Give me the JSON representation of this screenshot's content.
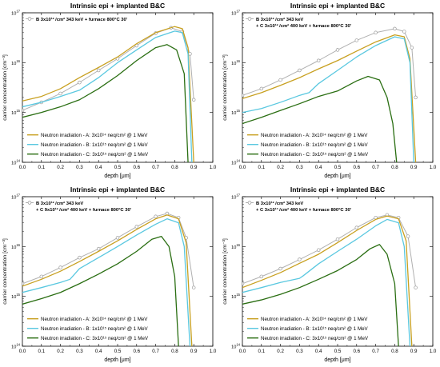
{
  "chart_data": [
    {
      "type": "line",
      "title": "Intrinsic epi + implanted B&C",
      "xlabel": "depth [μm]",
      "ylabel": "carrier concentration [cm⁻³]",
      "xlim": [
        0.0,
        1.0
      ],
      "ylim_log10": [
        14,
        17
      ],
      "y_scale": "log",
      "x_ticks": [
        "0.0",
        "0.1",
        "0.2",
        "0.3",
        "0.4",
        "0.5",
        "0.6",
        "0.7",
        "0.8",
        "0.9",
        "1.0"
      ],
      "y_ticks": [
        {
          "mant": "10",
          "exp": "17"
        },
        {
          "mant": "10",
          "exp": "16"
        },
        {
          "mant": "10",
          "exp": "15"
        },
        {
          "mant": "10",
          "exp": "14"
        }
      ],
      "implant": {
        "line1": "B 3x10¹² /cm² 343 keV + furnace 800°C 30'",
        "line2": ""
      },
      "series": [
        {
          "name": "B 3x10¹² /cm² 343 keV",
          "color": "#b0b0b0",
          "marker": "circle",
          "x": [
            0,
            0.1,
            0.2,
            0.3,
            0.4,
            0.5,
            0.6,
            0.7,
            0.78,
            0.84,
            0.88,
            0.9
          ],
          "y": [
            1100000000000000.0,
            1600000000000000.0,
            2400000000000000.0,
            4000000000000000.0,
            7000000000000000.0,
            1.2e+16,
            2.2e+16,
            3.9e+16,
            5e+16,
            4.2e+16,
            1.5e+16,
            1800000000000000.0
          ]
        },
        {
          "name": "Neutron irradiation - A: 3x10¹⁴ neq/cm² @ 1 MeV",
          "color": "#c8a020",
          "x": [
            0,
            0.1,
            0.2,
            0.3,
            0.4,
            0.5,
            0.6,
            0.7,
            0.8,
            0.84,
            0.87,
            0.9
          ],
          "y": [
            1700000000000000.0,
            2100000000000000.0,
            3000000000000000.0,
            5000000000000000.0,
            8000000000000000.0,
            1.3e+16,
            2.4e+16,
            4e+16,
            5.3e+16,
            4.8e+16,
            2e+16,
            100000000000000.0
          ]
        },
        {
          "name": "Neutron irradiation - B: 1x10¹⁵ neq/cm² @ 1 MeV",
          "color": "#5ac8e0",
          "x": [
            0,
            0.1,
            0.2,
            0.3,
            0.4,
            0.5,
            0.6,
            0.7,
            0.8,
            0.84,
            0.87,
            0.89
          ],
          "y": [
            1300000000000000.0,
            1600000000000000.0,
            2100000000000000.0,
            2800000000000000.0,
            5000000000000000.0,
            1e+16,
            1.8e+16,
            3.2e+16,
            4.3e+16,
            4e+16,
            1.5e+16,
            100000000000000.0
          ]
        },
        {
          "name": "Neutron irradiation - C: 3x10¹⁵ neq/cm² @ 1 MeV",
          "color": "#2a6e12",
          "x": [
            0,
            0.1,
            0.2,
            0.3,
            0.4,
            0.5,
            0.6,
            0.7,
            0.76,
            0.81,
            0.85,
            0.87
          ],
          "y": [
            800000000000000.0,
            1000000000000000.0,
            1300000000000000.0,
            1800000000000000.0,
            3000000000000000.0,
            5500000000000000.0,
            1.1e+16,
            2e+16,
            2.3e+16,
            1.8e+16,
            6000000000000000.0,
            100000000000000.0
          ]
        }
      ],
      "legend": "bottom-left"
    },
    {
      "type": "line",
      "title": "Intrinsic epi + implanted B&C",
      "xlabel": "depth [μm]",
      "ylabel": "carrier concentration [cm⁻³]",
      "xlim": [
        0.0,
        1.0
      ],
      "ylim_log10": [
        14,
        17
      ],
      "y_scale": "log",
      "x_ticks": [
        "0.0",
        "0.1",
        "0.2",
        "0.3",
        "0.4",
        "0.5",
        "0.6",
        "0.7",
        "0.8",
        "0.9",
        "1.0"
      ],
      "y_ticks": [
        {
          "mant": "10",
          "exp": "17"
        },
        {
          "mant": "10",
          "exp": "16"
        },
        {
          "mant": "10",
          "exp": "15"
        },
        {
          "mant": "10",
          "exp": "14"
        }
      ],
      "implant": {
        "line1": "B 3x10¹² /cm² 343 keV",
        "line2": "+ C 3x10¹² /cm² 400 keV + furnace 800°C 30'"
      },
      "series": [
        {
          "name": "B 3x10¹² /cm² 343 keV",
          "color": "#b0b0b0",
          "marker": "circle",
          "x": [
            0,
            0.1,
            0.2,
            0.3,
            0.4,
            0.5,
            0.6,
            0.7,
            0.8,
            0.85,
            0.89,
            0.91
          ],
          "y": [
            2200000000000000.0,
            3000000000000000.0,
            4500000000000000.0,
            7000000000000000.0,
            1.1e+16,
            1.8e+16,
            2.8e+16,
            4e+16,
            4.8e+16,
            4.2e+16,
            2e+16,
            2000000000000000.0
          ]
        },
        {
          "name": "Neutron irradiation - A: 3x10¹⁴ neq/cm² @ 1 MeV",
          "color": "#c8a020",
          "x": [
            0,
            0.1,
            0.2,
            0.3,
            0.4,
            0.5,
            0.6,
            0.7,
            0.8,
            0.85,
            0.88,
            0.91
          ],
          "y": [
            1900000000000000.0,
            2500000000000000.0,
            3500000000000000.0,
            5000000000000000.0,
            7500000000000000.0,
            1.1e+16,
            1.7e+16,
            2.6e+16,
            3.6e+16,
            3.3e+16,
            1.2e+16,
            100000000000000.0
          ]
        },
        {
          "name": "Neutron irradiation - B: 1x10¹⁵ neq/cm² @ 1 MeV",
          "color": "#5ac8e0",
          "x": [
            0,
            0.1,
            0.2,
            0.3,
            0.35,
            0.4,
            0.5,
            0.6,
            0.7,
            0.8,
            0.85,
            0.88,
            0.9
          ],
          "y": [
            1000000000000000.0,
            1200000000000000.0,
            1600000000000000.0,
            2200000000000000.0,
            2500000000000000.0,
            3800000000000000.0,
            7000000000000000.0,
            1.3e+16,
            2.2e+16,
            3.3e+16,
            3e+16,
            1e+16,
            100000000000000.0
          ]
        },
        {
          "name": "Neutron irradiation - C: 3x10¹⁵ neq/cm² @ 1 MeV",
          "color": "#2a6e12",
          "x": [
            0,
            0.1,
            0.2,
            0.3,
            0.4,
            0.5,
            0.6,
            0.66,
            0.72,
            0.76,
            0.79,
            0.81
          ],
          "y": [
            600000000000000.0,
            800000000000000.0,
            1100000000000000.0,
            1500000000000000.0,
            2100000000000000.0,
            2700000000000000.0,
            4300000000000000.0,
            5300000000000000.0,
            4500000000000000.0,
            2000000000000000.0,
            600000000000000.0,
            100000000000000.0
          ]
        }
      ],
      "legend": "bottom-left"
    },
    {
      "type": "line",
      "title": "Intrinsic epi + implanted B&C",
      "xlabel": "depth [μm]",
      "ylabel": "carrier concentration [cm⁻³]",
      "xlim": [
        0.0,
        1.0
      ],
      "ylim_log10": [
        14,
        17
      ],
      "y_scale": "log",
      "x_ticks": [
        "0.0",
        "0.1",
        "0.2",
        "0.3",
        "0.4",
        "0.5",
        "0.6",
        "0.7",
        "0.8",
        "0.9",
        "1.0"
      ],
      "y_ticks": [
        {
          "mant": "10",
          "exp": "17"
        },
        {
          "mant": "10",
          "exp": "16"
        },
        {
          "mant": "10",
          "exp": "15"
        },
        {
          "mant": "10",
          "exp": "14"
        }
      ],
      "implant": {
        "line1": "B 3x10¹² /cm² 343 keV",
        "line2": "+ C 9x10¹² /cm² 400 keV + furnace 800°C 30'"
      },
      "series": [
        {
          "name": "B 3x10¹² /cm² 343 keV",
          "color": "#b0b0b0",
          "marker": "circle",
          "x": [
            0,
            0.1,
            0.2,
            0.3,
            0.4,
            0.5,
            0.6,
            0.7,
            0.76,
            0.82,
            0.86,
            0.9
          ],
          "y": [
            1800000000000000.0,
            2500000000000000.0,
            3800000000000000.0,
            6000000000000000.0,
            9000000000000000.0,
            1.5e+16,
            2.5e+16,
            4e+16,
            4.6e+16,
            3.8e+16,
            1.5e+16,
            1500000000000000.0
          ]
        },
        {
          "name": "Neutron irradiation - A: 3x10¹⁴ neq/cm² @ 1 MeV",
          "color": "#c8a020",
          "x": [
            0,
            0.1,
            0.2,
            0.3,
            0.4,
            0.5,
            0.6,
            0.7,
            0.76,
            0.82,
            0.86,
            0.89
          ],
          "y": [
            1600000000000000.0,
            2200000000000000.0,
            3200000000000000.0,
            5000000000000000.0,
            8000000000000000.0,
            1.3e+16,
            2.2e+16,
            3.6e+16,
            4.3e+16,
            3.6e+16,
            1.2e+16,
            100000000000000.0
          ]
        },
        {
          "name": "Neutron irradiation - B: 1x10¹⁵ neq/cm² @ 1 MeV",
          "color": "#5ac8e0",
          "x": [
            0,
            0.1,
            0.2,
            0.25,
            0.3,
            0.4,
            0.5,
            0.6,
            0.7,
            0.76,
            0.82,
            0.85,
            0.88
          ],
          "y": [
            1200000000000000.0,
            1500000000000000.0,
            1900000000000000.0,
            2200000000000000.0,
            3600000000000000.0,
            6000000000000000.0,
            1e+16,
            1.7e+16,
            2.8e+16,
            3.6e+16,
            3e+16,
            1e+16,
            100000000000000.0
          ]
        },
        {
          "name": "Neutron irradiation - C: 3x10¹⁵ neq/cm² @ 1 MeV",
          "color": "#2a6e12",
          "x": [
            0,
            0.1,
            0.2,
            0.3,
            0.4,
            0.5,
            0.6,
            0.68,
            0.73,
            0.77,
            0.8,
            0.82
          ],
          "y": [
            700000000000000.0,
            900000000000000.0,
            1200000000000000.0,
            1800000000000000.0,
            2800000000000000.0,
            4500000000000000.0,
            8000000000000000.0,
            1.4e+16,
            1.6e+16,
            1e+16,
            2500000000000000.0,
            100000000000000.0
          ]
        }
      ],
      "legend": "bottom-left"
    },
    {
      "type": "line",
      "title": "Intrinsic epi + implanted B&C",
      "xlabel": "depth [μm]",
      "ylabel": "carrier concentration [cm⁻³]",
      "xlim": [
        0.0,
        1.0
      ],
      "ylim_log10": [
        14,
        17
      ],
      "y_scale": "log",
      "x_ticks": [
        "0.0",
        "0.1",
        "0.2",
        "0.3",
        "0.4",
        "0.5",
        "0.6",
        "0.7",
        "0.8",
        "0.9",
        "1.0"
      ],
      "y_ticks": [
        {
          "mant": "10",
          "exp": "17"
        },
        {
          "mant": "10",
          "exp": "16"
        },
        {
          "mant": "10",
          "exp": "15"
        },
        {
          "mant": "10",
          "exp": "14"
        }
      ],
      "implant": {
        "line1": "B 3x10¹² /cm² 343 keV",
        "line2": "+ C 3x10¹³ /cm² 400 keV + furnace 800°C 30'"
      },
      "series": [
        {
          "name": "B 3x10¹² /cm² 343 keV",
          "color": "#b0b0b0",
          "marker": "circle",
          "x": [
            0,
            0.1,
            0.2,
            0.3,
            0.4,
            0.5,
            0.6,
            0.7,
            0.76,
            0.82,
            0.87,
            0.91
          ],
          "y": [
            1800000000000000.0,
            2500000000000000.0,
            3600000000000000.0,
            5500000000000000.0,
            8500000000000000.0,
            1.4e+16,
            2.4e+16,
            3.8e+16,
            4.3e+16,
            3.8e+16,
            1.6e+16,
            1500000000000000.0
          ]
        },
        {
          "name": "Neutron irradiation - A: 3x10¹⁴ neq/cm² @ 1 MeV",
          "color": "#c8a020",
          "x": [
            0,
            0.1,
            0.2,
            0.3,
            0.4,
            0.5,
            0.6,
            0.7,
            0.76,
            0.82,
            0.86,
            0.89
          ],
          "y": [
            1500000000000000.0,
            2100000000000000.0,
            3000000000000000.0,
            4600000000000000.0,
            7000000000000000.0,
            1.2e+16,
            2.1e+16,
            3.5e+16,
            4.1e+16,
            3.6e+16,
            1.3e+16,
            100000000000000.0
          ]
        },
        {
          "name": "Neutron irradiation - B: 1x10¹⁵ neq/cm² @ 1 MeV",
          "color": "#5ac8e0",
          "x": [
            0,
            0.1,
            0.2,
            0.3,
            0.32,
            0.4,
            0.5,
            0.6,
            0.7,
            0.76,
            0.82,
            0.85,
            0.88
          ],
          "y": [
            1200000000000000.0,
            1500000000000000.0,
            1900000000000000.0,
            2300000000000000.0,
            2600000000000000.0,
            4500000000000000.0,
            8000000000000000.0,
            1.4e+16,
            2.6e+16,
            3.5e+16,
            3e+16,
            1e+16,
            100000000000000.0
          ]
        },
        {
          "name": "Neutron irradiation - C: 3x10¹⁵ neq/cm² @ 1 MeV",
          "color": "#2a6e12",
          "x": [
            0,
            0.1,
            0.2,
            0.3,
            0.4,
            0.5,
            0.6,
            0.67,
            0.72,
            0.76,
            0.8,
            0.82
          ],
          "y": [
            700000000000000.0,
            850000000000000.0,
            1100000000000000.0,
            1500000000000000.0,
            2200000000000000.0,
            3300000000000000.0,
            5500000000000000.0,
            9000000000000000.0,
            1.1e+16,
            7000000000000000.0,
            1800000000000000.0,
            100000000000000.0
          ]
        }
      ],
      "legend": "bottom-left"
    }
  ]
}
